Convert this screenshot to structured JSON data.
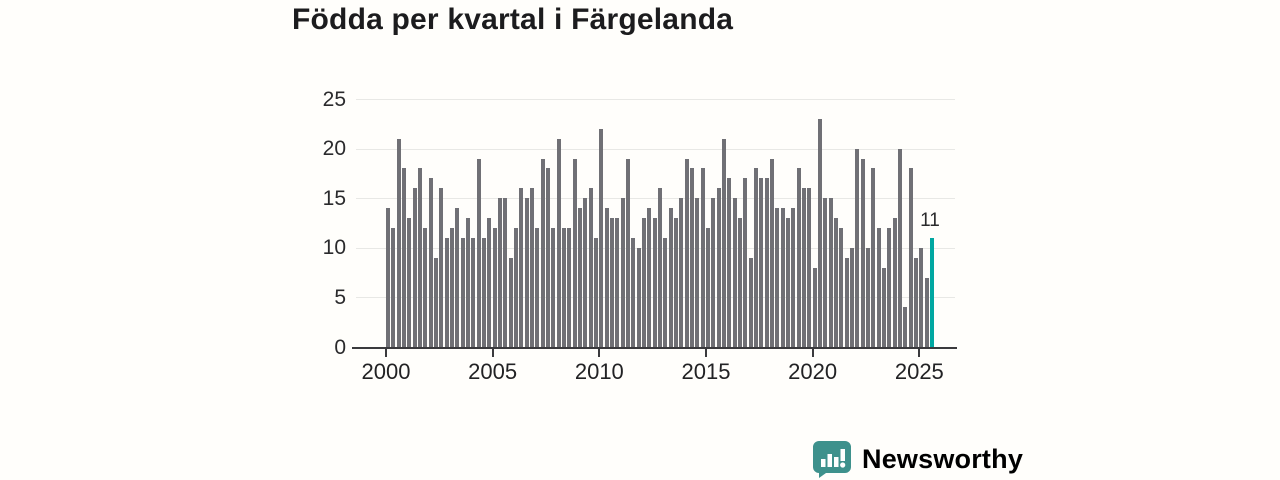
{
  "title": "Födda per kvartal i Färgelanda",
  "chart_data": {
    "type": "bar",
    "title": "Födda per kvartal i Färgelanda",
    "xlabel": "",
    "ylabel": "",
    "ylim": [
      0,
      25
    ],
    "grid": true,
    "legend": false,
    "x_start": "2000-Q1",
    "x_end": "2025-Q3",
    "x_tick_labels": [
      "2000",
      "2005",
      "2010",
      "2015",
      "2020",
      "2025"
    ],
    "y_tick_labels": [
      "0",
      "5",
      "10",
      "15",
      "20",
      "25"
    ],
    "values": [
      14,
      12,
      21,
      18,
      13,
      16,
      18,
      12,
      17,
      9,
      16,
      11,
      12,
      14,
      11,
      13,
      11,
      19,
      11,
      13,
      12,
      15,
      15,
      9,
      12,
      16,
      15,
      16,
      12,
      19,
      18,
      12,
      21,
      12,
      12,
      19,
      14,
      15,
      16,
      11,
      22,
      14,
      13,
      13,
      15,
      19,
      11,
      10,
      13,
      14,
      13,
      16,
      11,
      14,
      13,
      15,
      19,
      18,
      15,
      18,
      12,
      15,
      16,
      21,
      17,
      15,
      13,
      17,
      9,
      18,
      17,
      17,
      19,
      14,
      14,
      13,
      14,
      18,
      16,
      16,
      8,
      23,
      15,
      15,
      13,
      12,
      9,
      10,
      20,
      19,
      10,
      18,
      12,
      8,
      12,
      13,
      20,
      4,
      18,
      9,
      10,
      7,
      11
    ],
    "highlight_last_bar": true,
    "last_value_label": "11",
    "bar_color": "#707075",
    "highlight_color": "#00A7A1",
    "axis_color": "#3A3A3D",
    "gridline_color": "#E8E8E5"
  },
  "footer": {
    "brand": "Newsworthy",
    "brand_color": "#3E918C",
    "logo_icon": "bar-chart-speech-bubble-icon"
  }
}
